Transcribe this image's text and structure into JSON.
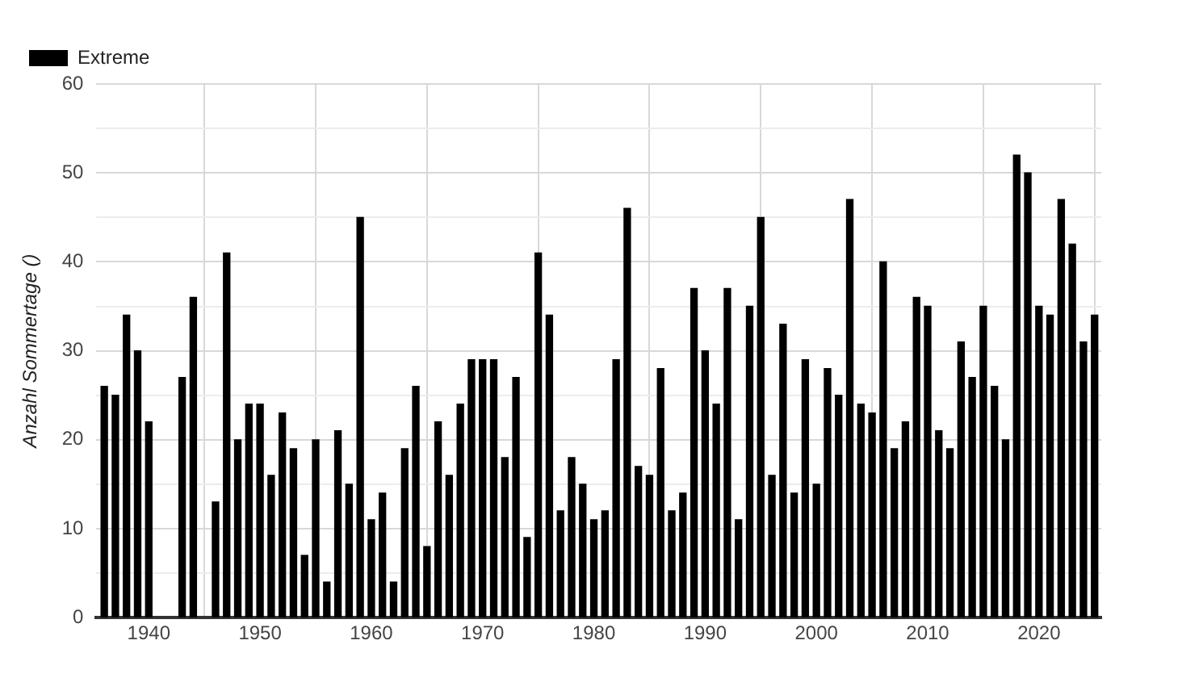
{
  "chart_data": {
    "type": "bar",
    "ylabel": "Anzahl Sommertage ()",
    "x": [
      1936,
      1937,
      1938,
      1939,
      1940,
      1941,
      1942,
      1943,
      1944,
      1945,
      1946,
      1947,
      1948,
      1949,
      1950,
      1951,
      1952,
      1953,
      1954,
      1955,
      1956,
      1957,
      1958,
      1959,
      1960,
      1961,
      1962,
      1963,
      1964,
      1965,
      1966,
      1967,
      1968,
      1969,
      1970,
      1971,
      1972,
      1973,
      1974,
      1975,
      1976,
      1977,
      1978,
      1979,
      1980,
      1981,
      1982,
      1983,
      1984,
      1985,
      1986,
      1987,
      1988,
      1989,
      1990,
      1991,
      1992,
      1993,
      1994,
      1995,
      1996,
      1997,
      1998,
      1999,
      2000,
      2001,
      2002,
      2003,
      2004,
      2005,
      2006,
      2007,
      2008,
      2009,
      2010,
      2011,
      2012,
      2013,
      2014,
      2015,
      2016,
      2017,
      2018,
      2019,
      2020,
      2021,
      2022,
      2023,
      2024,
      2025
    ],
    "series": [
      {
        "name": "Extreme",
        "color": "#000000",
        "values": [
          26,
          25,
          34,
          30,
          22,
          null,
          null,
          27,
          36,
          null,
          13,
          41,
          20,
          24,
          24,
          16,
          23,
          19,
          7,
          20,
          4,
          21,
          15,
          45,
          11,
          14,
          4,
          19,
          26,
          8,
          22,
          16,
          24,
          29,
          29,
          29,
          18,
          27,
          9,
          41,
          34,
          12,
          18,
          15,
          11,
          12,
          29,
          46,
          17,
          16,
          28,
          12,
          14,
          37,
          30,
          24,
          37,
          11,
          35,
          45,
          16,
          33,
          14,
          29,
          15,
          28,
          25,
          47,
          24,
          23,
          40,
          19,
          22,
          36,
          35,
          21,
          19,
          31,
          27,
          35,
          26,
          20,
          52,
          50,
          35,
          34,
          47,
          42,
          31,
          34
        ]
      }
    ],
    "xlim": [
      1935.3,
      2025.6
    ],
    "xticks": [
      1940,
      1950,
      1960,
      1970,
      1980,
      1990,
      2000,
      2010,
      2020
    ],
    "ylim": [
      0,
      60
    ],
    "yticks": [
      0,
      {
        "value": 5,
        "label": null
      },
      10,
      {
        "value": 15,
        "label": null
      },
      20,
      {
        "value": 25,
        "label": null
      },
      30,
      {
        "value": 35,
        "label": null
      },
      40,
      {
        "value": 45,
        "label": null
      },
      50,
      {
        "value": 55,
        "label": null
      },
      60
    ],
    "grid": true,
    "legend": "top left"
  }
}
